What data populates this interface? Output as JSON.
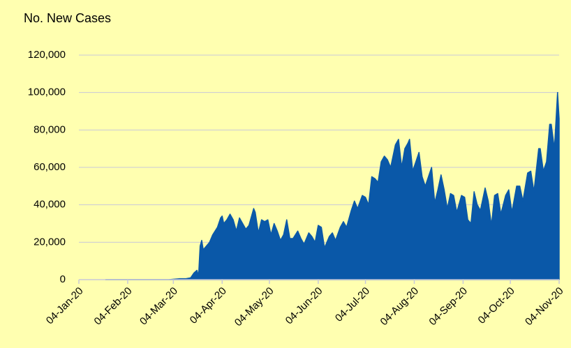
{
  "chart_data": {
    "type": "area",
    "title": "No. New Cases",
    "color": "#0a58a8",
    "grid": true,
    "x": [
      "2020-01-21",
      "2020-02-01",
      "2020-02-15",
      "2020-03-01",
      "2020-03-08",
      "2020-03-12",
      "2020-03-15",
      "2020-03-17",
      "2020-03-19",
      "2020-03-20",
      "2020-03-21",
      "2020-03-22",
      "2020-03-23",
      "2020-03-25",
      "2020-03-27",
      "2020-03-29",
      "2020-04-01",
      "2020-04-03",
      "2020-04-04",
      "2020-04-05",
      "2020-04-07",
      "2020-04-09",
      "2020-04-11",
      "2020-04-13",
      "2020-04-15",
      "2020-04-17",
      "2020-04-19",
      "2020-04-21",
      "2020-04-24",
      "2020-04-25",
      "2020-04-27",
      "2020-04-29",
      "2020-05-01",
      "2020-05-03",
      "2020-05-05",
      "2020-05-07",
      "2020-05-09",
      "2020-05-11",
      "2020-05-13",
      "2020-05-15",
      "2020-05-17",
      "2020-05-19",
      "2020-05-22",
      "2020-05-24",
      "2020-05-26",
      "2020-05-29",
      "2020-05-31",
      "2020-06-02",
      "2020-06-04",
      "2020-06-06",
      "2020-06-08",
      "2020-06-11",
      "2020-06-13",
      "2020-06-15",
      "2020-06-18",
      "2020-06-20",
      "2020-06-22",
      "2020-06-25",
      "2020-06-27",
      "2020-06-29",
      "2020-07-02",
      "2020-07-04",
      "2020-07-06",
      "2020-07-08",
      "2020-07-10",
      "2020-07-12",
      "2020-07-14",
      "2020-07-16",
      "2020-07-18",
      "2020-07-20",
      "2020-07-23",
      "2020-07-25",
      "2020-07-27",
      "2020-07-29",
      "2020-07-31",
      "2020-08-01",
      "2020-08-03",
      "2020-08-05",
      "2020-08-07",
      "2020-08-09",
      "2020-08-11",
      "2020-08-13",
      "2020-08-15",
      "2020-08-17",
      "2020-08-19",
      "2020-08-21",
      "2020-08-23",
      "2020-08-25",
      "2020-08-27",
      "2020-08-29",
      "2020-08-31",
      "2020-09-03",
      "2020-09-05",
      "2020-09-07",
      "2020-09-09",
      "2020-09-11",
      "2020-09-13",
      "2020-09-15",
      "2020-09-18",
      "2020-09-20",
      "2020-09-22",
      "2020-09-24",
      "2020-09-26",
      "2020-09-28",
      "2020-10-01",
      "2020-10-03",
      "2020-10-05",
      "2020-10-08",
      "2020-10-10",
      "2020-10-12",
      "2020-10-15",
      "2020-10-17",
      "2020-10-19",
      "2020-10-22",
      "2020-10-23",
      "2020-10-25",
      "2020-10-27",
      "2020-10-29",
      "2020-10-30",
      "2020-11-01",
      "2020-11-03",
      "2020-11-04"
    ],
    "values": [
      0,
      0,
      0,
      0,
      500,
      500,
      1000,
      3500,
      5000,
      2000,
      18000,
      21000,
      16000,
      18000,
      20000,
      24000,
      28000,
      33000,
      34000,
      30000,
      32000,
      35000,
      32000,
      26000,
      33000,
      30000,
      27000,
      29000,
      38000,
      36000,
      25000,
      32000,
      31000,
      32000,
      24000,
      30000,
      26000,
      21000,
      24000,
      32000,
      22000,
      22000,
      26000,
      22000,
      19000,
      25000,
      23000,
      20000,
      29000,
      28000,
      17000,
      23000,
      25000,
      21000,
      28000,
      31000,
      28000,
      37000,
      42000,
      38000,
      45000,
      44000,
      40000,
      55000,
      54000,
      52000,
      63000,
      66000,
      64000,
      60000,
      72000,
      75000,
      60000,
      70000,
      73000,
      75000,
      58000,
      63000,
      68000,
      55000,
      50000,
      55000,
      60000,
      41000,
      48000,
      56000,
      48000,
      38000,
      46000,
      45000,
      36000,
      45000,
      44000,
      32000,
      30000,
      47000,
      40000,
      37000,
      49000,
      42000,
      29000,
      45000,
      46000,
      35000,
      45000,
      48000,
      36000,
      50000,
      50000,
      42000,
      57000,
      58000,
      47000,
      70000,
      70000,
      58000,
      63000,
      83000,
      83000,
      70000,
      100000,
      86000
    ],
    "xlim": [
      "2020-01-04",
      "2020-11-04"
    ],
    "xticks": [
      {
        "value": "2020-01-04",
        "label": "04-Jan-20"
      },
      {
        "value": "2020-02-04",
        "label": "04-Feb-20"
      },
      {
        "value": "2020-03-04",
        "label": "04-Mar-20"
      },
      {
        "value": "2020-04-04",
        "label": "04-Apr-20"
      },
      {
        "value": "2020-05-04",
        "label": "04-May-20"
      },
      {
        "value": "2020-06-04",
        "label": "04-Jun-20"
      },
      {
        "value": "2020-07-04",
        "label": "04-Jul-20"
      },
      {
        "value": "2020-08-04",
        "label": "04-Aug-20"
      },
      {
        "value": "2020-09-04",
        "label": "04-Sep-20"
      },
      {
        "value": "2020-10-04",
        "label": "04-Oct-20"
      },
      {
        "value": "2020-11-04",
        "label": "04-Nov-20"
      }
    ],
    "ylim": [
      0,
      120000
    ],
    "yticks": [
      0,
      {
        "value": 20000,
        "label": "20,000"
      },
      {
        "value": 40000,
        "label": "40,000"
      },
      {
        "value": 60000,
        "label": "60,000"
      },
      {
        "value": 80000,
        "label": "80,000"
      },
      {
        "value": 100000,
        "label": "100,000"
      },
      {
        "value": 120000,
        "label": "120,000"
      }
    ]
  }
}
